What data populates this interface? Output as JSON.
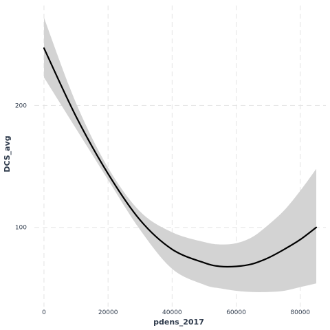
{
  "chart_data": {
    "type": "line",
    "title": "",
    "xlabel": "pdens_2017",
    "ylabel": "DCS_avg",
    "xlim": [
      -3000,
      88000
    ],
    "ylim": [
      35,
      282
    ],
    "x_ticks": [
      0,
      20000,
      40000,
      60000,
      80000
    ],
    "x_tick_labels": [
      "0",
      "20000",
      "40000",
      "60000",
      "80000"
    ],
    "y_ticks": [
      100,
      200
    ],
    "y_tick_labels": [
      "100",
      "200"
    ],
    "grid": true,
    "legend": "none",
    "series": [
      {
        "kind": "smooth-fit",
        "color": "#000000",
        "x": [
          0,
          10000,
          20000,
          30000,
          40000,
          50000,
          55000,
          60000,
          65000,
          70000,
          75000,
          80000,
          85000
        ],
        "y": [
          247,
          191,
          144,
          106,
          82,
          71,
          68,
          68,
          70,
          75,
          82,
          90,
          100
        ]
      },
      {
        "kind": "confidence-band",
        "color": "#d3d3d3",
        "x": [
          0,
          10000,
          20000,
          30000,
          40000,
          50000,
          55000,
          60000,
          65000,
          70000,
          75000,
          80000,
          85000
        ],
        "y_low": [
          223,
          181,
          139,
          98,
          66,
          53,
          50,
          48,
          47,
          47,
          48,
          51,
          54
        ],
        "y_high": [
          272,
          202,
          149,
          113,
          96,
          88,
          86,
          87,
          92,
          102,
          114,
          130,
          148
        ]
      }
    ]
  }
}
